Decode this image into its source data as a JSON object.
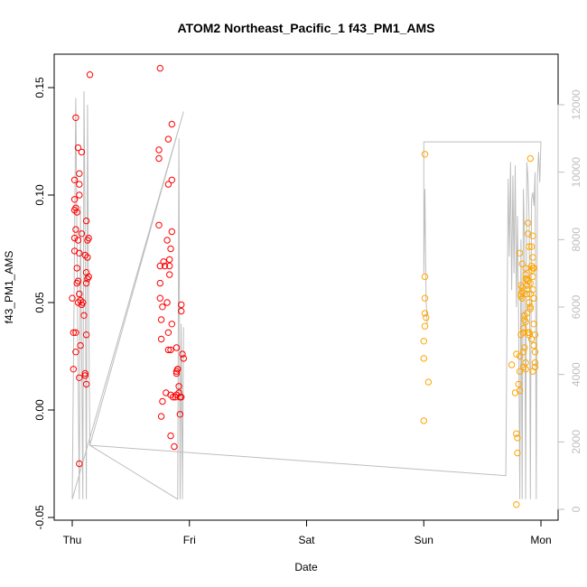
{
  "chart_data": {
    "type": "scatter",
    "title": "ATOM2 Northeast_Pacific_1 f43_PM1_AMS",
    "xlabel": "Date",
    "ylabel": "f43_PM1_AMS",
    "x_ticks": [
      "Thu",
      "Fri",
      "Sat",
      "Sun",
      "Mon"
    ],
    "x_range_days": [
      -0.1,
      4.1
    ],
    "ylim": [
      -0.05,
      0.165
    ],
    "y_ticks": [
      -0.05,
      0.0,
      0.05,
      0.1,
      0.15
    ],
    "y_tick_labels": [
      "-0.05",
      "0.00",
      "0.05",
      "0.10",
      "0.15"
    ],
    "y2_lim": [
      -200,
      13000
    ],
    "y2_ticks": [
      0,
      2000,
      4000,
      6000,
      8000,
      10000,
      12000
    ],
    "y2_tick_labels": [
      "0",
      "2000",
      "4000",
      "6000",
      "8000",
      "10000",
      "12000"
    ],
    "colors": {
      "series_red": "#ff0000",
      "series_orange": "#ffa500",
      "altitude_line": "#bebebe"
    },
    "series": [
      {
        "color": "#ff0000",
        "points": [
          [
            0.0,
            0.052
          ],
          [
            0.01,
            0.019
          ],
          [
            0.01,
            0.036
          ],
          [
            0.02,
            0.074
          ],
          [
            0.02,
            0.08
          ],
          [
            0.02,
            0.093
          ],
          [
            0.02,
            0.098
          ],
          [
            0.02,
            0.107
          ],
          [
            0.03,
            0.084
          ],
          [
            0.03,
            0.094
          ],
          [
            0.03,
            0.136
          ],
          [
            0.03,
            0.036
          ],
          [
            0.03,
            0.027
          ],
          [
            0.04,
            0.059
          ],
          [
            0.04,
            0.066
          ],
          [
            0.04,
            0.092
          ],
          [
            0.05,
            0.122
          ],
          [
            0.05,
            0.06
          ],
          [
            0.05,
            0.079
          ],
          [
            0.05,
            0.05
          ],
          [
            0.06,
            0.11
          ],
          [
            0.06,
            0.105
          ],
          [
            0.06,
            0.1
          ],
          [
            0.06,
            0.073
          ],
          [
            0.06,
            0.054
          ],
          [
            0.06,
            0.015
          ],
          [
            0.06,
            -0.025
          ],
          [
            0.07,
            0.03
          ],
          [
            0.07,
            0.051
          ],
          [
            0.08,
            0.082
          ],
          [
            0.08,
            0.049
          ],
          [
            0.08,
            0.12
          ],
          [
            0.09,
            0.05
          ],
          [
            0.1,
            0.044
          ],
          [
            0.11,
            0.016
          ],
          [
            0.11,
            0.017
          ],
          [
            0.11,
            0.072
          ],
          [
            0.12,
            0.059
          ],
          [
            0.12,
            0.012
          ],
          [
            0.12,
            0.064
          ],
          [
            0.12,
            0.035
          ],
          [
            0.12,
            0.088
          ],
          [
            0.13,
            0.071
          ],
          [
            0.13,
            0.061
          ],
          [
            0.13,
            0.079
          ],
          [
            0.14,
            0.08
          ],
          [
            0.14,
            0.062
          ],
          [
            0.15,
            0.156
          ],
          [
            0.74,
            0.121
          ],
          [
            0.74,
            0.117
          ],
          [
            0.74,
            0.086
          ],
          [
            0.75,
            0.067
          ],
          [
            0.75,
            0.159
          ],
          [
            0.75,
            0.059
          ],
          [
            0.75,
            0.052
          ],
          [
            0.76,
            0.042
          ],
          [
            0.76,
            0.033
          ],
          [
            0.76,
            -0.003
          ],
          [
            0.77,
            0.048
          ],
          [
            0.77,
            0.004
          ],
          [
            0.78,
            0.069
          ],
          [
            0.79,
            0.067
          ],
          [
            0.8,
            0.008
          ],
          [
            0.81,
            0.05
          ],
          [
            0.81,
            0.079
          ],
          [
            0.82,
            0.126
          ],
          [
            0.82,
            0.105
          ],
          [
            0.82,
            0.036
          ],
          [
            0.82,
            0.028
          ],
          [
            0.83,
            0.07
          ],
          [
            0.83,
            0.067
          ],
          [
            0.83,
            0.063
          ],
          [
            0.84,
            0.075
          ],
          [
            0.84,
            0.007
          ],
          [
            0.84,
            0.028
          ],
          [
            0.84,
            -0.012
          ],
          [
            0.85,
            0.133
          ],
          [
            0.85,
            0.107
          ],
          [
            0.85,
            0.083
          ],
          [
            0.85,
            0.04
          ],
          [
            0.86,
            0.006
          ],
          [
            0.87,
            -0.017
          ],
          [
            0.88,
            0.006
          ],
          [
            0.89,
            0.018
          ],
          [
            0.89,
            0.007
          ],
          [
            0.89,
            0.029
          ],
          [
            0.89,
            0.017
          ],
          [
            0.9,
            0.019
          ],
          [
            0.9,
            0.019
          ],
          [
            0.91,
            0.011
          ],
          [
            0.91,
            0.008
          ],
          [
            0.92,
            -0.002
          ],
          [
            0.92,
            0.006
          ],
          [
            0.93,
            0.006
          ],
          [
            0.93,
            0.049
          ],
          [
            0.93,
            0.046
          ],
          [
            0.94,
            0.026
          ],
          [
            0.95,
            0.024
          ]
        ]
      },
      {
        "color": "#ffa500",
        "points": [
          [
            3.0,
            -0.005
          ],
          [
            3.0,
            0.024
          ],
          [
            3.0,
            0.032
          ],
          [
            3.01,
            0.039
          ],
          [
            3.01,
            0.045
          ],
          [
            3.01,
            0.062
          ],
          [
            3.01,
            0.119
          ],
          [
            3.01,
            0.052
          ],
          [
            3.02,
            0.043
          ],
          [
            3.04,
            0.013
          ],
          [
            3.75,
            0.021
          ],
          [
            3.78,
            0.008
          ],
          [
            3.79,
            -0.044
          ],
          [
            3.79,
            0.026
          ],
          [
            3.79,
            -0.011
          ],
          [
            3.8,
            -0.013
          ],
          [
            3.8,
            -0.02
          ],
          [
            3.81,
            0.012
          ],
          [
            3.82,
            0.009
          ],
          [
            3.82,
            0.073
          ],
          [
            3.82,
            0.018
          ],
          [
            3.82,
            0.025
          ],
          [
            3.83,
            0.054
          ],
          [
            3.83,
            0.058
          ],
          [
            3.83,
            0.053
          ],
          [
            3.83,
            0.035
          ],
          [
            3.84,
            0.057
          ],
          [
            3.84,
            0.055
          ],
          [
            3.84,
            0.068
          ],
          [
            3.84,
            0.052
          ],
          [
            3.85,
            0.02
          ],
          [
            3.85,
            0.038
          ],
          [
            3.85,
            0.036
          ],
          [
            3.85,
            0.027
          ],
          [
            3.86,
            0.042
          ],
          [
            3.86,
            0.044
          ],
          [
            3.86,
            0.029
          ],
          [
            3.87,
            0.061
          ],
          [
            3.87,
            0.063
          ],
          [
            3.87,
            0.066
          ],
          [
            3.87,
            0.022
          ],
          [
            3.87,
            0.041
          ],
          [
            3.87,
            0.019
          ],
          [
            3.88,
            0.061
          ],
          [
            3.88,
            0.056
          ],
          [
            3.88,
            0.058
          ],
          [
            3.88,
            0.054
          ],
          [
            3.88,
            0.045
          ],
          [
            3.89,
            0.082
          ],
          [
            3.89,
            0.087
          ],
          [
            3.89,
            0.06
          ],
          [
            3.89,
            0.036
          ],
          [
            3.9,
            0.076
          ],
          [
            3.9,
            0.035
          ],
          [
            3.9,
            0.036
          ],
          [
            3.9,
            0.05
          ],
          [
            3.91,
            0.059
          ],
          [
            3.91,
            0.054
          ],
          [
            3.91,
            0.048
          ],
          [
            3.91,
            0.047
          ],
          [
            3.91,
            0.117
          ],
          [
            3.92,
            0.065
          ],
          [
            3.92,
            0.067
          ],
          [
            3.92,
            0.076
          ],
          [
            3.92,
            0.033
          ],
          [
            3.93,
            0.081
          ],
          [
            3.93,
            0.066
          ],
          [
            3.93,
            0.071
          ],
          [
            3.93,
            0.062
          ],
          [
            3.93,
            0.056
          ],
          [
            3.93,
            0.018
          ],
          [
            3.94,
            0.04
          ],
          [
            3.94,
            0.052
          ],
          [
            3.94,
            0.03
          ],
          [
            3.94,
            0.066
          ],
          [
            3.95,
            0.035
          ],
          [
            3.95,
            0.027
          ],
          [
            3.95,
            0.02
          ],
          [
            3.95,
            0.022
          ]
        ]
      }
    ],
    "altitude_series": {
      "color": "#bebebe",
      "points": [
        [
          0.0,
          300
        ],
        [
          0.02,
          8000
        ],
        [
          0.03,
          12200
        ],
        [
          0.05,
          4000
        ],
        [
          0.06,
          300
        ],
        [
          0.07,
          9000
        ],
        [
          0.09,
          300
        ],
        [
          0.1,
          12400
        ],
        [
          0.11,
          8200
        ],
        [
          0.12,
          300
        ],
        [
          0.13,
          12000
        ],
        [
          0.14,
          6000
        ],
        [
          0.15,
          1900
        ],
        [
          3.7,
          1000
        ],
        [
          3.72,
          9800
        ],
        [
          3.73,
          7500
        ],
        [
          3.74,
          10300
        ],
        [
          3.75,
          6500
        ],
        [
          3.76,
          9900
        ],
        [
          3.77,
          7000
        ],
        [
          3.78,
          10200
        ],
        [
          3.79,
          6000
        ],
        [
          3.8,
          8700
        ],
        [
          3.81,
          5500
        ],
        [
          3.82,
          300
        ],
        [
          3.83,
          8000
        ],
        [
          3.84,
          300
        ],
        [
          3.85,
          9500
        ],
        [
          3.86,
          8000
        ],
        [
          3.87,
          300
        ],
        [
          3.88,
          10300
        ],
        [
          3.89,
          9800
        ],
        [
          3.9,
          8500
        ],
        [
          3.91,
          300
        ],
        [
          3.92,
          9200
        ],
        [
          3.93,
          9400
        ],
        [
          3.94,
          9000
        ],
        [
          3.95,
          10000
        ],
        [
          3.96,
          300
        ],
        [
          3.97,
          9900
        ],
        [
          3.98,
          10600
        ],
        [
          3.99,
          9700
        ],
        [
          4.0,
          10900
        ],
        [
          3.0,
          10900
        ],
        [
          3.0,
          7000
        ],
        [
          3.01,
          9500
        ],
        [
          3.02,
          6200
        ],
        [
          3.03,
          5500
        ]
      ],
      "points_alt": [
        [
          0.0,
          300
        ],
        [
          0.95,
          11800
        ],
        [
          0.15,
          1900
        ],
        [
          0.9,
          300
        ],
        [
          0.91,
          11000
        ],
        [
          0.92,
          300
        ],
        [
          0.93,
          5500
        ],
        [
          0.94,
          300
        ],
        [
          0.95,
          5400
        ]
      ]
    }
  }
}
